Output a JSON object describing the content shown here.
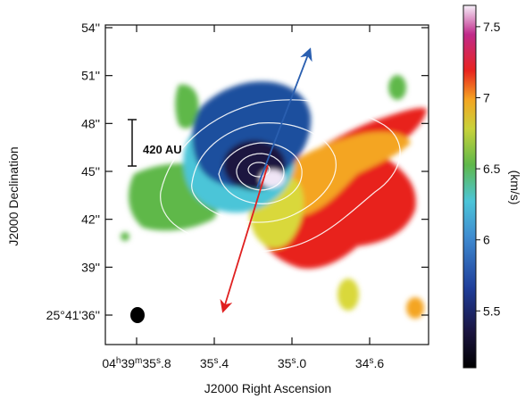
{
  "chart_data": {
    "type": "heatmap",
    "title": "",
    "xlabel": "J2000 Right Ascension",
    "ylabel": "J2000 Declination",
    "colorbar_label": "(km/s)",
    "x_ticks": [
      {
        "label_main": "04",
        "h": "h",
        "m_val": "39",
        "m": "m",
        "s_val": "35",
        "s": "s",
        "frac": ".8"
      },
      {
        "label_main": "35",
        "s": "s",
        "frac": ".4"
      },
      {
        "label_main": "35",
        "s": "s",
        "frac": ".0"
      },
      {
        "label_main": "34",
        "s": "s",
        "frac": ".6"
      }
    ],
    "y_ticks": [
      "54''",
      "51''",
      "48''",
      "45''",
      "42''",
      "39''",
      "25°41'36''"
    ],
    "y_tick_values": [
      54,
      51,
      48,
      45,
      42,
      39,
      36
    ],
    "colorbar_ticks": [
      "7.5",
      "7",
      "6.5",
      "6",
      "5.5"
    ],
    "colorbar_tick_values": [
      7.5,
      7.0,
      6.5,
      6.0,
      5.5
    ],
    "colorbar_range": [
      5.1,
      7.65
    ],
    "scale_bar": {
      "label": "420 AU"
    },
    "beam": "filled ellipse, lower left",
    "arrows": [
      {
        "direction": "north-east",
        "color": "#2a5fb0"
      },
      {
        "direction": "south-west",
        "color": "#e02020"
      }
    ],
    "colors": {
      "blue_side": "#1e4f9e",
      "red_side": "#e8231f",
      "systemic": "#5fb84a",
      "contour": "#ffffff"
    },
    "grid": false,
    "legend": "none"
  }
}
